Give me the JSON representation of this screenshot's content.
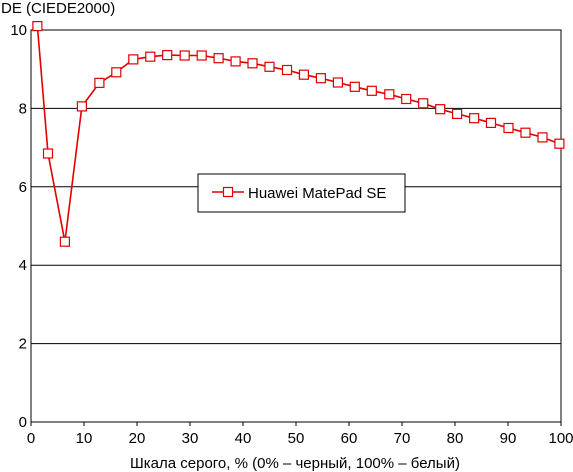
{
  "chart_data": {
    "type": "line",
    "title": "",
    "ylabel": "DE (CIEDE2000)",
    "xlabel": "Шкала серого, % (0% – черный, 100% – белый)",
    "xlim": [
      0,
      100
    ],
    "ylim": [
      0,
      10
    ],
    "xticks": [
      0,
      10,
      20,
      30,
      40,
      50,
      60,
      70,
      80,
      90,
      100
    ],
    "yticks": [
      0,
      2,
      4,
      6,
      8,
      10
    ],
    "grid": "horizontal",
    "legend_position": "center",
    "series": [
      {
        "name": "Huawei MatePad SE",
        "color": "#e00000",
        "marker": "square",
        "x": [
          1.2,
          3.2,
          6.4,
          9.6,
          12.9,
          16.1,
          19.3,
          22.5,
          25.7,
          29.0,
          32.2,
          35.4,
          38.6,
          41.8,
          45.0,
          48.3,
          51.5,
          54.7,
          57.9,
          61.1,
          64.3,
          67.6,
          70.8,
          74.0,
          77.2,
          80.4,
          83.6,
          86.8,
          90.1,
          93.3,
          96.5,
          99.7
        ],
        "values": [
          10.1,
          6.85,
          4.6,
          8.05,
          8.65,
          8.92,
          9.25,
          9.32,
          9.36,
          9.35,
          9.35,
          9.28,
          9.2,
          9.15,
          9.06,
          8.98,
          8.86,
          8.77,
          8.66,
          8.55,
          8.45,
          8.36,
          8.24,
          8.13,
          7.98,
          7.86,
          7.75,
          7.63,
          7.5,
          7.38,
          7.26,
          7.1
        ]
      }
    ]
  }
}
